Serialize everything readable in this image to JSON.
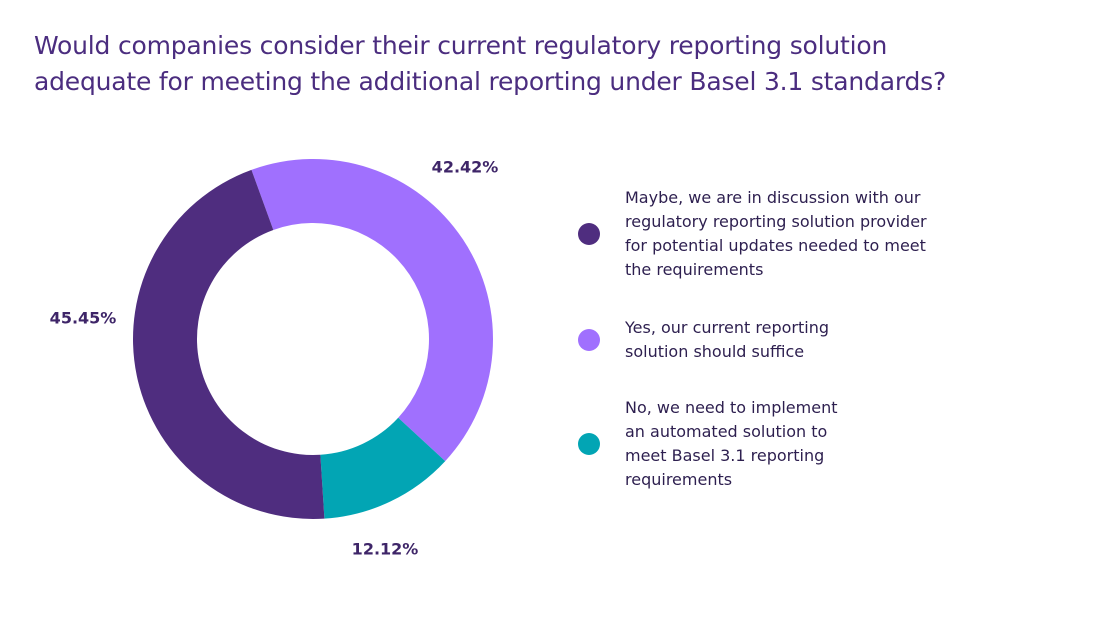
{
  "chart_data": {
    "type": "pie",
    "donut": true,
    "title": "Would companies consider their current regulatory reporting solution\nadequate for meeting the additional reporting under Basel 3.1 standards?",
    "legend_position": "right",
    "slices": [
      {
        "label": "Yes, our current reporting\nsolution should suffice",
        "value": 42.42,
        "value_label": "42.42%",
        "color": "#a070fe"
      },
      {
        "label": "No, we need to implement\nan automated solution to\nmeet Basel 3.1 reporting\nrequirements",
        "value": 12.12,
        "value_label": "12.12%",
        "color": "#02a5b4"
      },
      {
        "label": "Maybe, we are in discussion with our\nregulatory reporting solution provider\nfor potential updates needed to meet\nthe requirements",
        "value": 45.45,
        "value_label": "45.45%",
        "color": "#4f2d7f"
      }
    ],
    "legend_order": [
      2,
      0,
      1
    ]
  }
}
